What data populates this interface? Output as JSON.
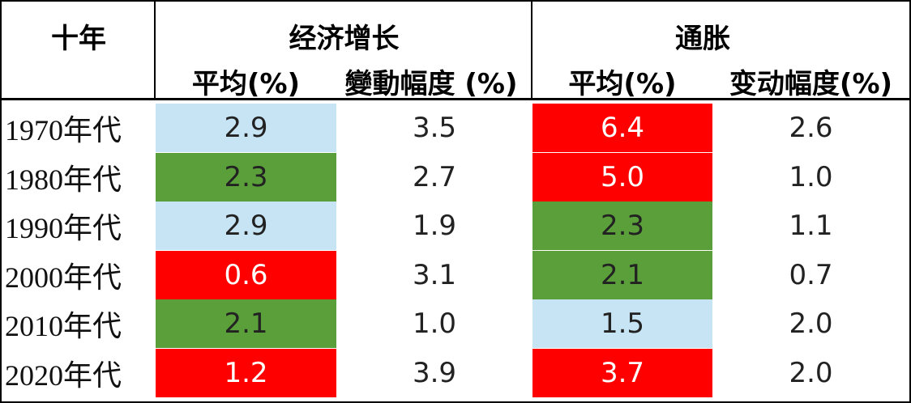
{
  "header": {
    "corner": "十年",
    "groups": [
      "经济增长",
      "通胀"
    ],
    "subheaders": [
      "平均(%)",
      "變動幅度 (%)",
      "平均(%)",
      "变动幅度(%)"
    ]
  },
  "table": {
    "rows": [
      {
        "decade": "1970年代",
        "cells": [
          "2.9",
          "3.5",
          "6.4",
          "2.6"
        ],
        "fills": [
          "#c7e4f4",
          "#ffffff",
          "#ff0000",
          "#ffffff"
        ]
      },
      {
        "decade": "1980年代",
        "cells": [
          "2.3",
          "2.7",
          "5.0",
          "1.0"
        ],
        "fills": [
          "#5b9f3a",
          "#ffffff",
          "#ff0000",
          "#ffffff"
        ]
      },
      {
        "decade": "1990年代",
        "cells": [
          "2.9",
          "1.9",
          "2.3",
          "1.1"
        ],
        "fills": [
          "#c7e4f4",
          "#ffffff",
          "#5b9f3a",
          "#ffffff"
        ]
      },
      {
        "decade": "2000年代",
        "cells": [
          "0.6",
          "3.1",
          "2.1",
          "0.7"
        ],
        "fills": [
          "#ff0000",
          "#ffffff",
          "#5b9f3a",
          "#ffffff"
        ]
      },
      {
        "decade": "2010年代",
        "cells": [
          "2.1",
          "1.0",
          "1.5",
          "2.0"
        ],
        "fills": [
          "#5b9f3a",
          "#ffffff",
          "#c7e4f4",
          "#ffffff"
        ]
      },
      {
        "decade": "2020年代",
        "cells": [
          "1.2",
          "3.9",
          "3.7",
          "2.0"
        ],
        "fills": [
          "#ff0000",
          "#ffffff",
          "#ff0000",
          "#ffffff"
        ]
      }
    ]
  }
}
